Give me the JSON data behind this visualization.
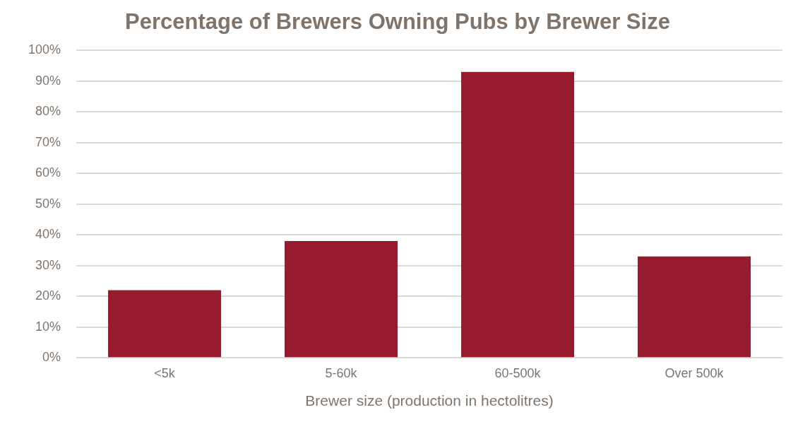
{
  "chart_data": {
    "type": "bar",
    "title": "Percentage of Brewers Owning Pubs by Brewer Size",
    "xlabel": "Brewer size (production in hectolitres)",
    "categories": [
      "<5k",
      "5-60k",
      "60-500k",
      "Over 500k"
    ],
    "values": [
      22,
      38,
      93,
      33
    ],
    "color": "#961b2f",
    "ylim": [
      0,
      100
    ],
    "yticks": [
      {
        "value": 0,
        "label": "0%"
      },
      {
        "value": 10,
        "label": "10%"
      },
      {
        "value": 20,
        "label": "20%"
      },
      {
        "value": 30,
        "label": "30%"
      },
      {
        "value": 40,
        "label": "40%"
      },
      {
        "value": 50,
        "label": "50%"
      },
      {
        "value": 60,
        "label": "60%"
      },
      {
        "value": 70,
        "label": "70%"
      },
      {
        "value": 80,
        "label": "80%"
      },
      {
        "value": 90,
        "label": "90%"
      },
      {
        "value": 100,
        "label": "100%"
      }
    ],
    "grid": "y",
    "legend": false
  }
}
